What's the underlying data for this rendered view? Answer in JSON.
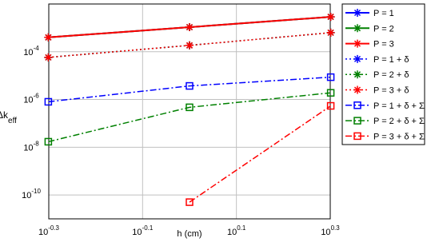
{
  "chart_data": {
    "type": "line",
    "x_label": "h (cm)",
    "y_label": "Δk",
    "y_label_subscript": "eff",
    "x_scale": "log",
    "y_scale": "log",
    "grid": true,
    "legend": "outside-right",
    "xlim": [
      0.5012,
      1.9953
    ],
    "xticks": [
      {
        "value": 0.5012,
        "label": "10",
        "label_exponent": "-0.3"
      },
      {
        "value": 0.7943,
        "label": "10",
        "label_exponent": "-0.1"
      },
      {
        "value": 1.2589,
        "label": "10",
        "label_exponent": "0.1"
      },
      {
        "value": 1.9953,
        "label": "10",
        "label_exponent": "0.3"
      }
    ],
    "ylim": [
      1e-11,
      0.01
    ],
    "yticks": [
      {
        "value": 1e-10,
        "label": "10",
        "label_exponent": "-10"
      },
      {
        "value": 1e-08,
        "label": "10",
        "label_exponent": "-8"
      },
      {
        "value": 1e-06,
        "label": "10",
        "label_exponent": "-6"
      },
      {
        "value": 0.0001,
        "label": "10",
        "label_exponent": "-4"
      }
    ],
    "x": [
      0.5,
      1,
      2
    ],
    "series": [
      {
        "name": "P = 1",
        "color": "#0000ff",
        "marker": "star",
        "dash": "solid",
        "values": [
          0.0004,
          0.00107,
          0.0029
        ]
      },
      {
        "name": "P = 2",
        "color": "#008000",
        "marker": "star",
        "dash": "solid",
        "values": [
          0.0004,
          0.00107,
          0.0029
        ]
      },
      {
        "name": "P = 3",
        "color": "#ff0000",
        "marker": "star",
        "dash": "solid",
        "values": [
          0.0004,
          0.00107,
          0.0029
        ]
      },
      {
        "name": "P = 1 + δ",
        "color": "#0000ff",
        "marker": "star",
        "dash": "dotted",
        "values": [
          5.8e-05,
          0.000185,
          0.00063
        ]
      },
      {
        "name": "P = 2 + δ",
        "color": "#008000",
        "marker": "star",
        "dash": "dotted",
        "values": [
          5.8e-05,
          0.000185,
          0.00063
        ]
      },
      {
        "name": "P = 3 + δ",
        "color": "#ff0000",
        "marker": "star",
        "dash": "dotted",
        "values": [
          5.8e-05,
          0.000185,
          0.00063
        ]
      },
      {
        "name": "P = 1 + δ + Σ",
        "color": "#0000ff",
        "marker": "square",
        "dash": "dashdot",
        "values": [
          8e-07,
          3.7e-06,
          8.6e-06
        ]
      },
      {
        "name": "P = 2 + δ + Σ",
        "color": "#008000",
        "marker": "square",
        "dash": "dashdot",
        "values": [
          1.7e-08,
          4.7e-07,
          1.9e-06
        ]
      },
      {
        "name": "P = 3 + δ + Σ",
        "color": "#ff0000",
        "marker": "square",
        "dash": "dashdot",
        "values": [
          null,
          5e-11,
          5.4e-07
        ]
      }
    ]
  }
}
